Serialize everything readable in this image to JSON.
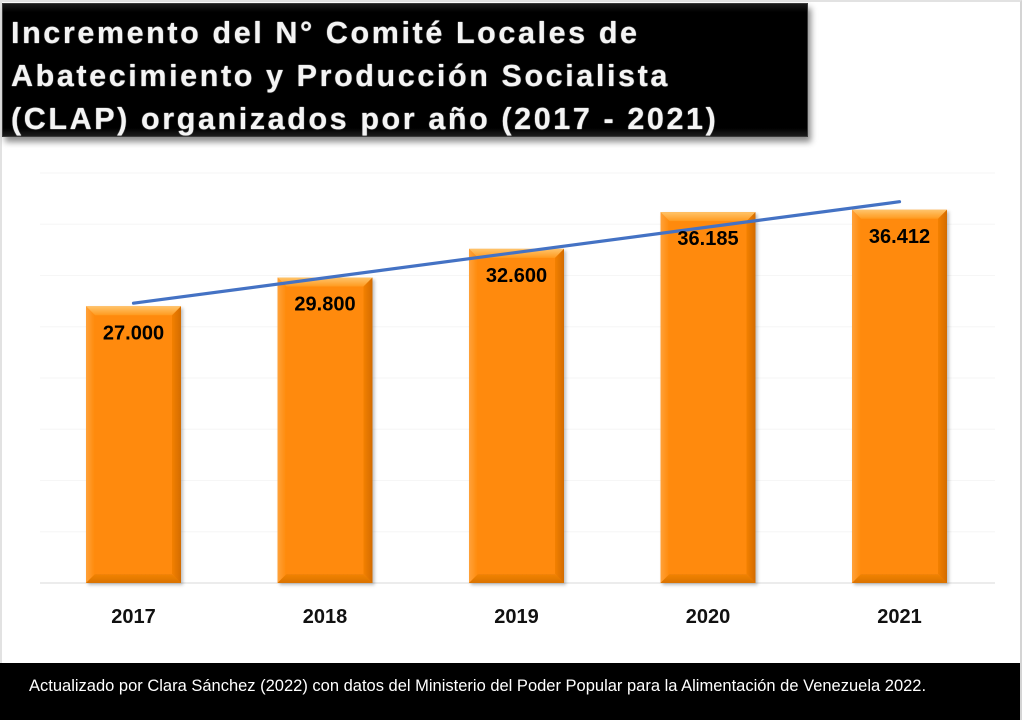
{
  "title": {
    "lines": [
      "Incremento del N° Comité Locales de",
      "Abatecimiento y Producción Socialista",
      "(CLAP) organizados por año (2017 - 2021)"
    ]
  },
  "footer": {
    "text": "Actualizado por Clara Sánchez (2022) con datos del Ministerio del Poder Popular para la Alimentación de Venezuela 2022."
  },
  "colors": {
    "bar": "#FF8A0A",
    "bar_light": "#FFB347",
    "bar_dark": "#D96F00",
    "trendline": "#4472C4",
    "title_bg": "#000000",
    "footer_bg": "#000000"
  },
  "chart_data": {
    "type": "bar",
    "title": "Incremento del N° Comité Locales de Abatecimiento y Producción Socialista (CLAP) organizados por año (2017 - 2021)",
    "xlabel": "",
    "ylabel": "",
    "categories": [
      "2017",
      "2018",
      "2019",
      "2020",
      "2021"
    ],
    "values": [
      27000,
      29800,
      32600,
      36185,
      36412
    ],
    "data_labels": [
      "27.000",
      "29.800",
      "32.600",
      "36.185",
      "36.412"
    ],
    "ylim": [
      0,
      40000
    ],
    "y_gridline_step": 5000,
    "grid": true,
    "y_axis_visible": false,
    "legend": "none",
    "trendline": {
      "type": "linear",
      "start_value": 27300,
      "end_value": 37200
    }
  }
}
